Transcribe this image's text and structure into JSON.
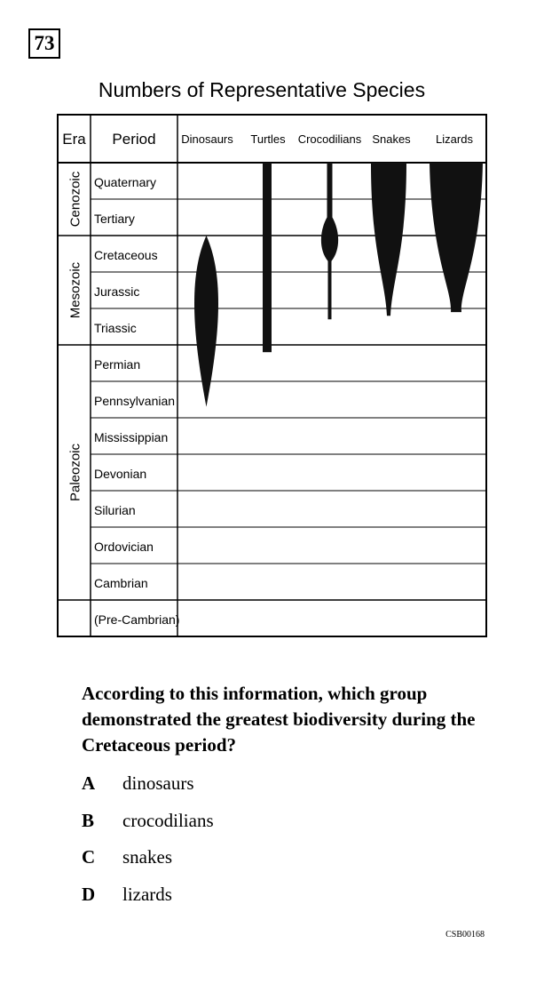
{
  "question_number": "73",
  "chart_data": {
    "type": "table",
    "title": "Numbers of Representative Species",
    "column_headers": {
      "era": "Era",
      "period": "Period",
      "groups": [
        "Dinosaurs",
        "Turtles",
        "Crocodilians",
        "Snakes",
        "Lizards"
      ]
    },
    "eras": [
      {
        "name": "Cenozoic",
        "periods": [
          "Quaternary",
          "Tertiary"
        ]
      },
      {
        "name": "Mesozoic",
        "periods": [
          "Cretaceous",
          "Jurassic",
          "Triassic"
        ]
      },
      {
        "name": "Paleozoic",
        "periods": [
          "Permian",
          "Pennsylvanian",
          "Mississippian",
          "Devonian",
          "Silurian",
          "Ordovician",
          "Cambrian"
        ]
      },
      {
        "name": "",
        "periods": [
          "(Pre-Cambrian)"
        ]
      }
    ],
    "series": [
      {
        "group": "Dinosaurs",
        "from_period": "Pennsylvanian",
        "to_period": "Cretaceous",
        "shape": "spindle widest in Triassic/Jurassic, ending at close of Cretaceous"
      },
      {
        "group": "Turtles",
        "from_period": "Triassic",
        "to_period": "Quaternary",
        "shape": "narrow constant width"
      },
      {
        "group": "Crocodilians",
        "from_period": "Triassic",
        "to_period": "Quaternary",
        "shape": "thin with bulge at Cretaceous/Tertiary boundary"
      },
      {
        "group": "Snakes",
        "from_period": "Triassic",
        "to_period": "Quaternary",
        "shape": "widening toward present"
      },
      {
        "group": "Lizards",
        "from_period": "Triassic",
        "to_period": "Quaternary",
        "shape": "widening toward present, widest overall"
      }
    ]
  },
  "question": {
    "text": "According to this information, which group demonstrated the greatest biodiversity during the Cretaceous period?",
    "choices": [
      {
        "letter": "A",
        "text": "dinosaurs"
      },
      {
        "letter": "B",
        "text": "crocodilians"
      },
      {
        "letter": "C",
        "text": "snakes"
      },
      {
        "letter": "D",
        "text": "lizards"
      }
    ]
  },
  "item_code": "CSB00168"
}
